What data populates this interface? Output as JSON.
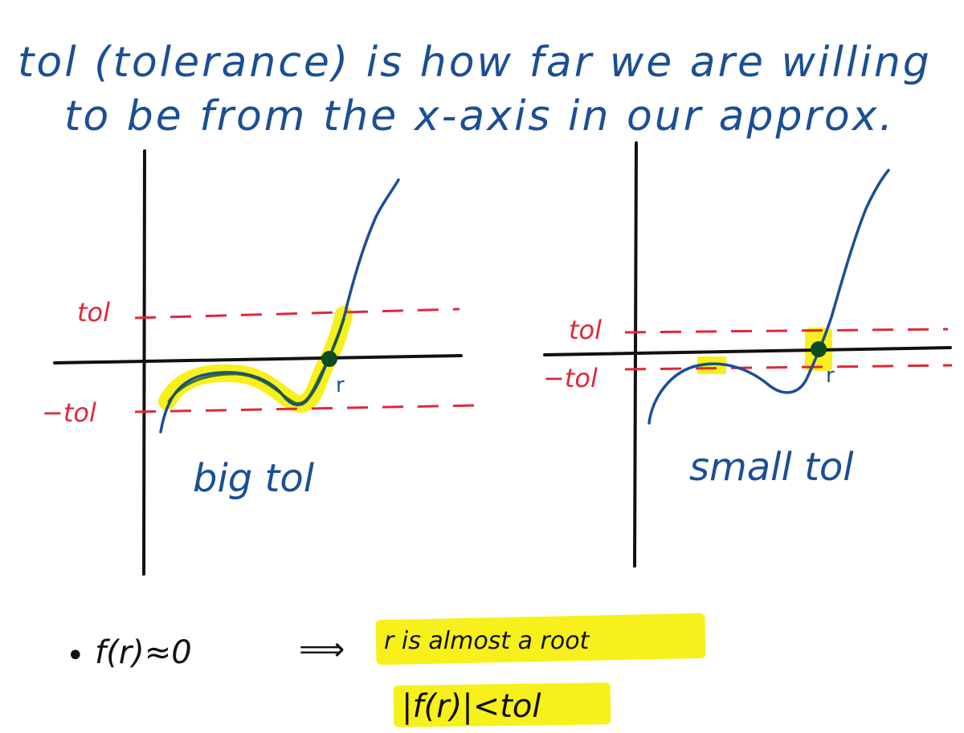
{
  "heading": {
    "line1": "tol (tolerance) is how far we are willing",
    "line2": "to be from the x-axis in our approx."
  },
  "left_panel": {
    "tol_label": "tol",
    "neg_tol_label": "−tol",
    "root_label": "r",
    "caption": "big tol"
  },
  "right_panel": {
    "tol_label": "tol",
    "neg_tol_label": "−tol",
    "root_label": "r",
    "caption": "small tol"
  },
  "notes": {
    "bullet": "•",
    "statement": "f(r)≈0",
    "implies": "⟹",
    "conclusion": "r is almost a root",
    "condition": "|f(r)|<tol"
  },
  "colors": {
    "ink_blue": "#1a4f96",
    "ink_red": "#e0283a",
    "ink_black": "#111111",
    "highlight": "#f7f01a",
    "root_dot": "#0c4a1f"
  }
}
